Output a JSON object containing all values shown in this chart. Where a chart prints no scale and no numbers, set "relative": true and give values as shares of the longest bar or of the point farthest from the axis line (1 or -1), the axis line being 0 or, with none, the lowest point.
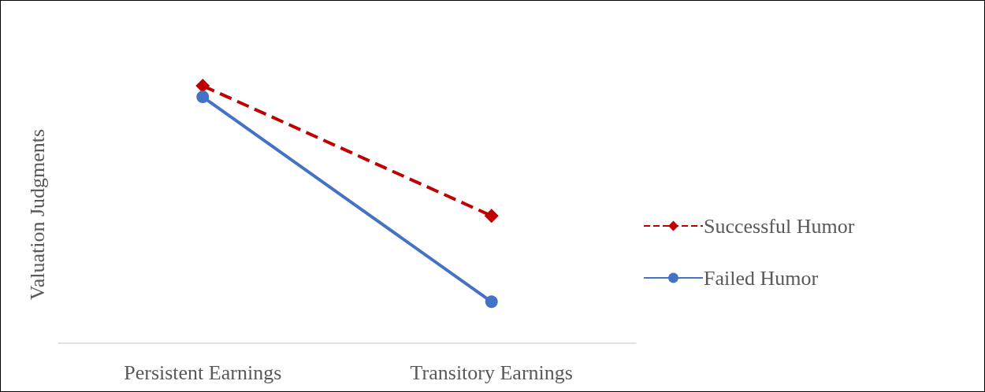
{
  "chart_data": {
    "type": "line",
    "ylabel": "Valuation Judgments",
    "categories": [
      "Persistent Earnings",
      "Transitory Earnings"
    ],
    "relative": true,
    "grid": false,
    "legend": "right",
    "series": [
      {
        "name": "Successful Humor",
        "color": "#c00000",
        "values": [
          1,
          0.495
        ],
        "marker": "diamond",
        "line_style": "dashed"
      },
      {
        "name": "Failed Humor",
        "color": "#4472c4",
        "values": [
          0.957,
          0.161
        ],
        "marker": "circle",
        "line_style": "solid"
      }
    ]
  }
}
